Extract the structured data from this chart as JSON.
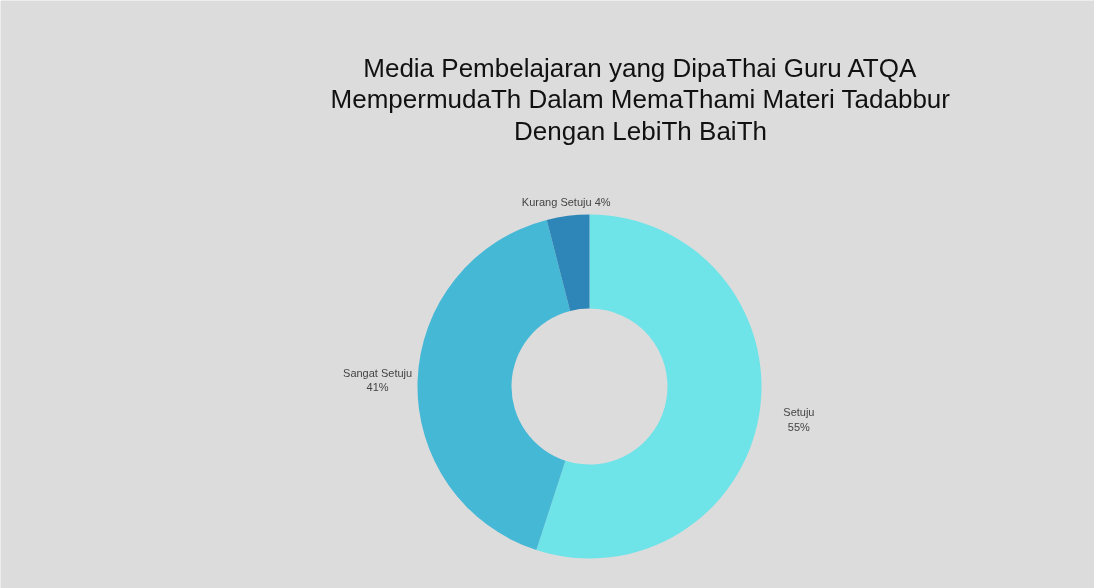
{
  "chart_data": {
    "type": "donut",
    "title": "Media Pembelajaran yang DipaThai Guru ATQA\nMempermudaTh Dalam MemaThami Materi Tadabbur\nDengan LebiTh BaiTh",
    "categories": [
      "Setuju",
      "Sangat Setuju",
      "Kurang Setuju"
    ],
    "values": [
      55,
      41,
      4
    ],
    "colors": [
      "#6ee3e8",
      "#45b8d6",
      "#2e86b8"
    ],
    "value_labels": [
      "55%",
      "41%",
      "4%"
    ]
  }
}
